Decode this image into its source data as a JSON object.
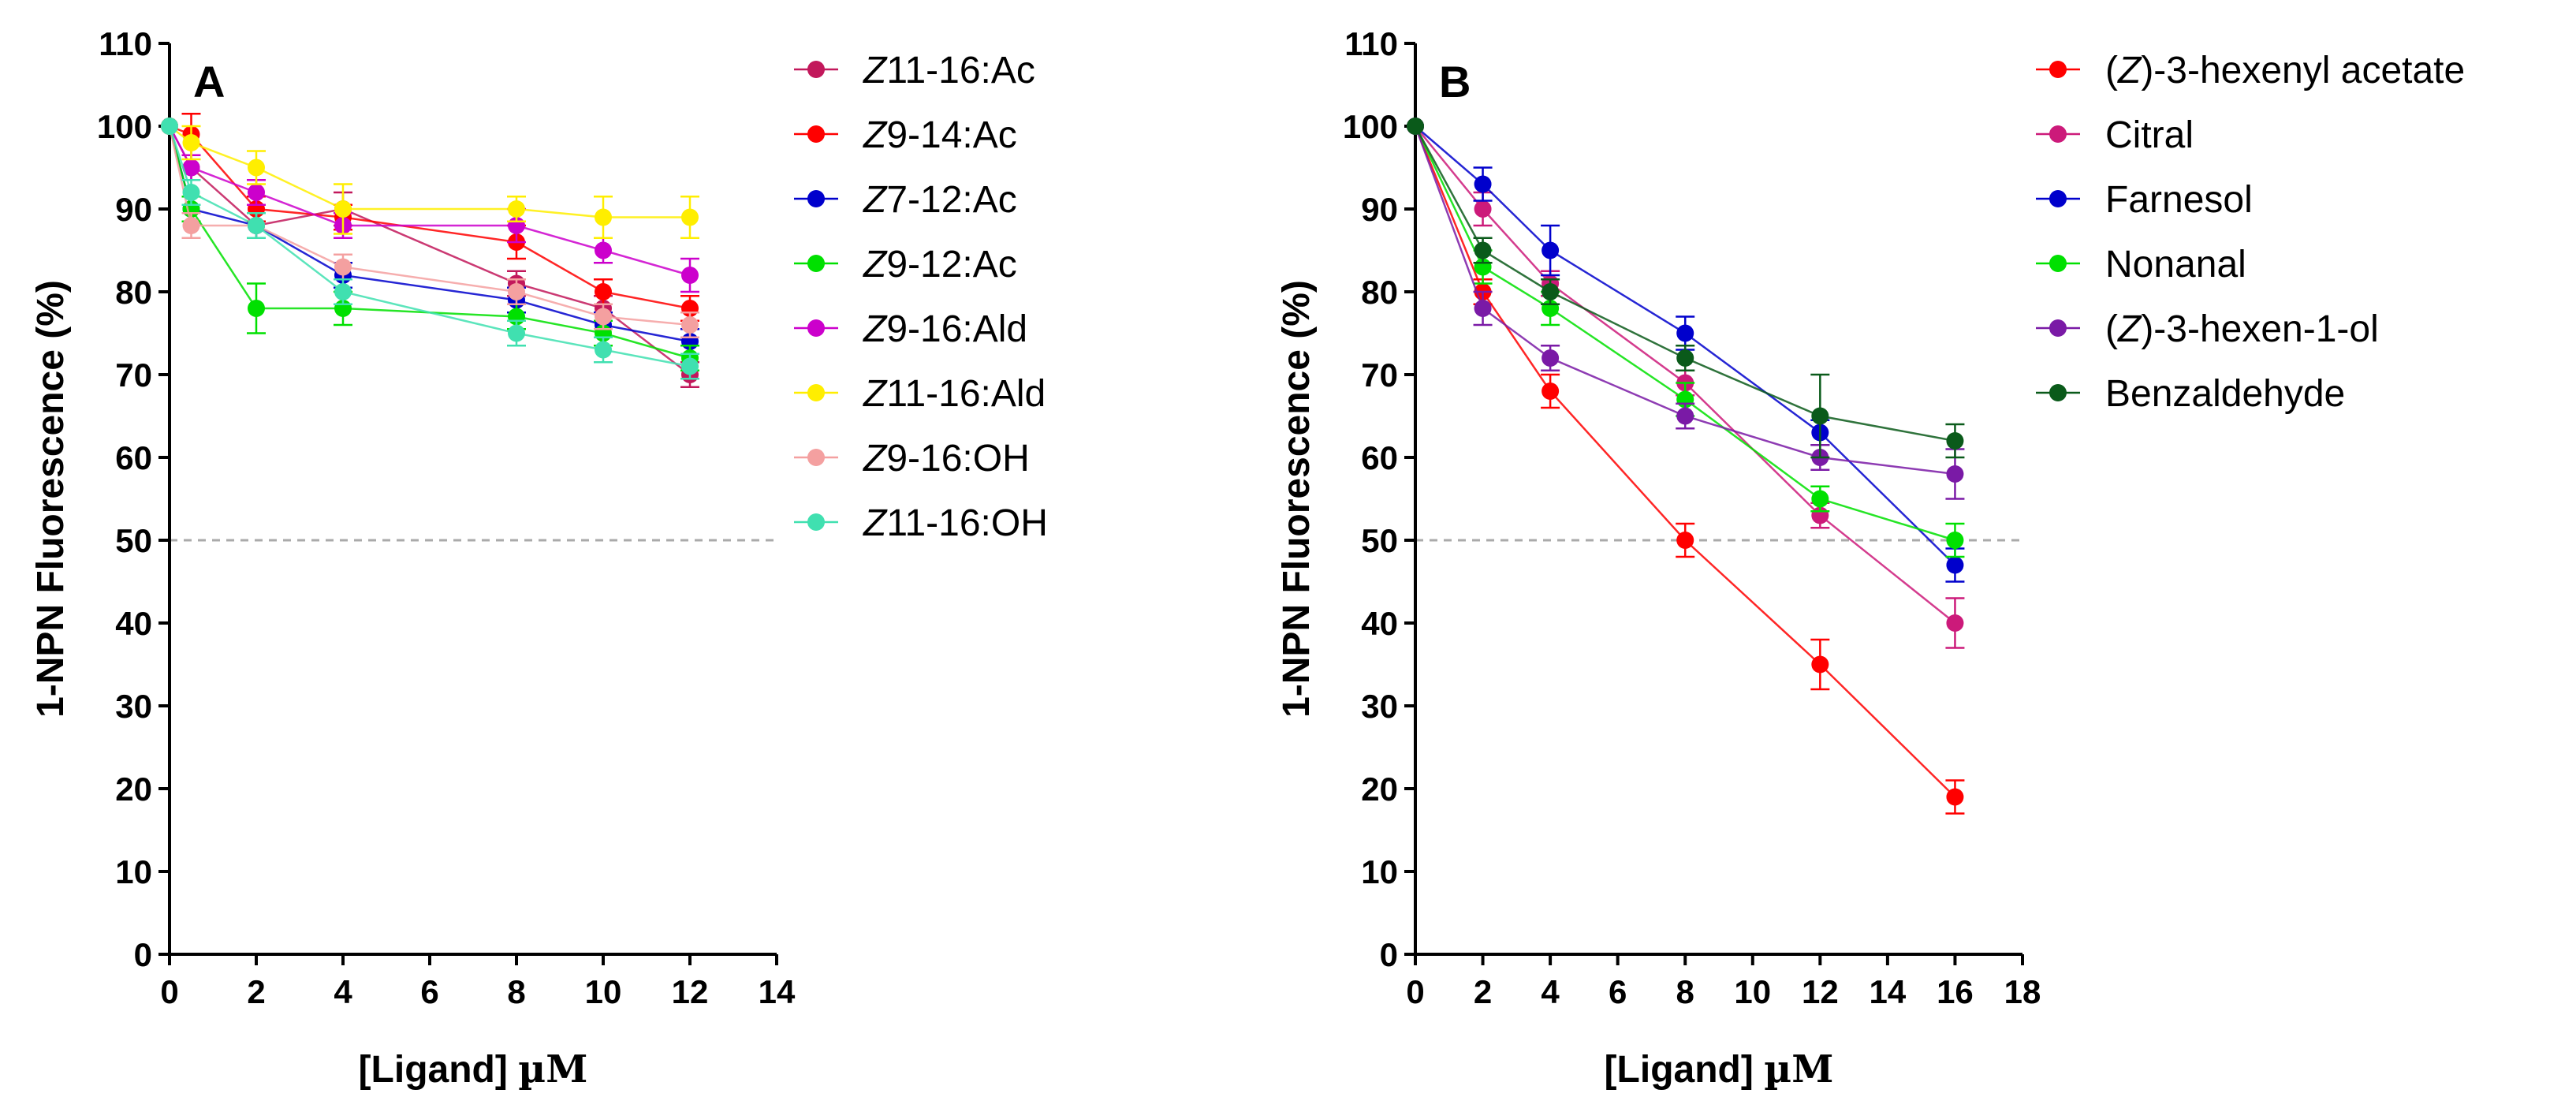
{
  "chart_data": [
    {
      "type": "line",
      "panel_label": "A",
      "xlabel_prefix": "[Ligand] ",
      "xlabel_unit": "µM",
      "ylabel": "1-NPN Fluorescence (%)",
      "xlim": [
        0,
        14
      ],
      "ylim": [
        0,
        110
      ],
      "xticks": [
        0,
        2,
        4,
        6,
        8,
        10,
        12,
        14
      ],
      "yticks": [
        0,
        10,
        20,
        30,
        40,
        50,
        60,
        70,
        80,
        90,
        100,
        110
      ],
      "reference_line": 50,
      "legend_position": "right",
      "series": [
        {
          "name_italic": "Z",
          "name_rest": "11-16:Ac",
          "color": "#c2185b",
          "x": [
            0,
            0.5,
            2,
            4,
            8,
            10,
            12
          ],
          "y": [
            100,
            95,
            88,
            90,
            81,
            78,
            70
          ],
          "err": [
            0,
            1.5,
            1.5,
            2,
            1.5,
            1.5,
            1.5
          ]
        },
        {
          "name_italic": "Z",
          "name_rest": "9-14:Ac",
          "color": "#ff0000",
          "x": [
            0,
            0.5,
            2,
            4,
            8,
            10,
            12
          ],
          "y": [
            100,
            99,
            90,
            89,
            86,
            80,
            78
          ],
          "err": [
            0,
            2.5,
            1.5,
            1.5,
            2,
            1.5,
            1.5
          ]
        },
        {
          "name_italic": "Z",
          "name_rest": "7-12:Ac",
          "color": "#0000cc",
          "x": [
            0,
            0.5,
            2,
            4,
            8,
            10,
            12
          ],
          "y": [
            100,
            90,
            88,
            82,
            79,
            76,
            74
          ],
          "err": [
            0,
            1.5,
            1.5,
            1.5,
            1.5,
            1.5,
            1.5
          ]
        },
        {
          "name_italic": "Z",
          "name_rest": "9-12:Ac",
          "color": "#00e000",
          "x": [
            0,
            0.5,
            2,
            4,
            8,
            10,
            12
          ],
          "y": [
            100,
            90,
            78,
            78,
            77,
            75,
            72
          ],
          "err": [
            0,
            1.5,
            3,
            2,
            1.5,
            1.5,
            1.5
          ]
        },
        {
          "name_italic": "Z",
          "name_rest": "9-16:Ald",
          "color": "#cc00cc",
          "x": [
            0,
            0.5,
            2,
            4,
            8,
            10,
            12
          ],
          "y": [
            100,
            95,
            92,
            88,
            88,
            85,
            82
          ],
          "err": [
            0,
            1.5,
            1.5,
            1.5,
            2,
            1.5,
            2
          ]
        },
        {
          "name_italic": "Z",
          "name_rest": "11-16:Ald",
          "color": "#ffee00",
          "x": [
            0,
            0.5,
            2,
            4,
            8,
            10,
            12
          ],
          "y": [
            100,
            98,
            95,
            90,
            90,
            89,
            89
          ],
          "err": [
            0,
            2,
            2,
            3,
            1.5,
            2.5,
            2.5
          ]
        },
        {
          "name_italic": "Z",
          "name_rest": "9-16:OH",
          "color": "#f4a0a0",
          "x": [
            0,
            0.5,
            2,
            4,
            8,
            10,
            12
          ],
          "y": [
            100,
            88,
            88,
            83,
            80,
            77,
            76
          ],
          "err": [
            0,
            1.5,
            1.5,
            1.5,
            1.5,
            1.5,
            1.5
          ]
        },
        {
          "name_italic": "Z",
          "name_rest": "11-16:OH",
          "color": "#40e0b0",
          "x": [
            0,
            0.5,
            2,
            4,
            8,
            10,
            12
          ],
          "y": [
            100,
            92,
            88,
            80,
            75,
            73,
            71
          ],
          "err": [
            0,
            1.5,
            1.5,
            1.5,
            1.5,
            1.5,
            1.5
          ]
        }
      ]
    },
    {
      "type": "line",
      "panel_label": "B",
      "xlabel_prefix": "[Ligand] ",
      "xlabel_unit": "µM",
      "ylabel": "1-NPN Fluorescence (%)",
      "xlim": [
        0,
        18
      ],
      "ylim": [
        0,
        110
      ],
      "xticks": [
        0,
        2,
        4,
        6,
        8,
        10,
        12,
        14,
        16,
        18
      ],
      "yticks": [
        0,
        10,
        20,
        30,
        40,
        50,
        60,
        70,
        80,
        90,
        100,
        110
      ],
      "reference_line": 50,
      "legend_position": "right",
      "series": [
        {
          "name_pre": "(",
          "name_italic": "Z",
          "name_rest": ")-3-hexenyl acetate",
          "color": "#ff0000",
          "x": [
            0,
            2,
            4,
            8,
            12,
            16
          ],
          "y": [
            100,
            80,
            68,
            50,
            35,
            19
          ],
          "err": [
            0,
            1.5,
            2,
            2,
            3,
            2
          ]
        },
        {
          "name_rest": "Citral",
          "color": "#cc1a7a",
          "x": [
            0,
            2,
            4,
            8,
            12,
            16
          ],
          "y": [
            100,
            90,
            81,
            69,
            53,
            40
          ],
          "err": [
            0,
            2,
            1.5,
            1.5,
            1.5,
            3
          ]
        },
        {
          "name_rest": "Farnesol",
          "color": "#0000cc",
          "x": [
            0,
            2,
            4,
            8,
            12,
            16
          ],
          "y": [
            100,
            93,
            85,
            75,
            63,
            47
          ],
          "err": [
            0,
            2,
            3,
            2,
            1.5,
            2
          ]
        },
        {
          "name_rest": "Nonanal",
          "color": "#00e000",
          "x": [
            0,
            2,
            4,
            8,
            12,
            16
          ],
          "y": [
            100,
            83,
            78,
            67,
            55,
            50
          ],
          "err": [
            0,
            2,
            2,
            2,
            1.5,
            2
          ]
        },
        {
          "name_pre": "(",
          "name_italic": "Z",
          "name_rest": ")-3-hexen-1-ol",
          "color": "#7a1aa6",
          "x": [
            0,
            2,
            4,
            8,
            12,
            16
          ],
          "y": [
            100,
            78,
            72,
            65,
            60,
            58
          ],
          "err": [
            0,
            2,
            1.5,
            1.5,
            1.5,
            3
          ]
        },
        {
          "name_rest": "Benzaldehyde",
          "color": "#0a5a1a",
          "x": [
            0,
            2,
            4,
            8,
            12,
            16
          ],
          "y": [
            100,
            85,
            80,
            72,
            65,
            62
          ],
          "err": [
            0,
            1.5,
            1.5,
            1.5,
            5,
            2
          ]
        }
      ]
    }
  ]
}
